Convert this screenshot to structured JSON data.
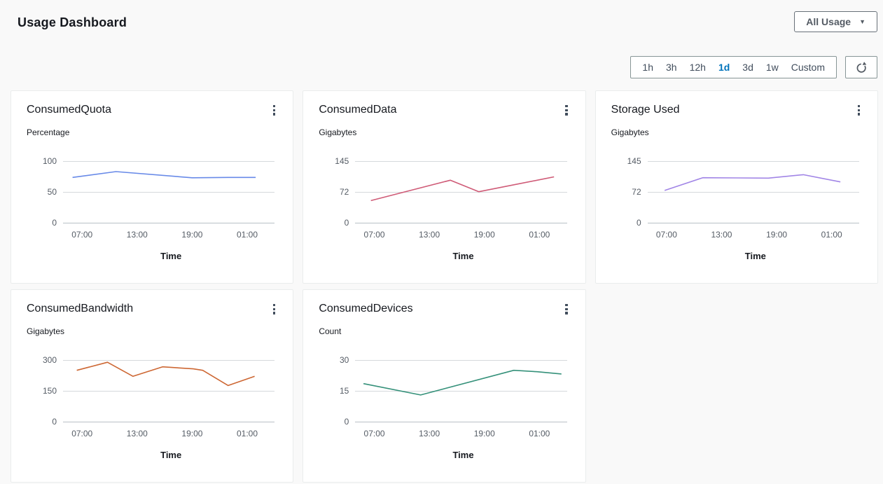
{
  "page": {
    "title": "Usage Dashboard",
    "background": "#f9f9f9"
  },
  "header": {
    "dashboard_select": {
      "label": "All Usage",
      "caret_icon": "▼"
    }
  },
  "toolbar": {
    "time_ranges": [
      {
        "label": "1h",
        "selected": false
      },
      {
        "label": "3h",
        "selected": false
      },
      {
        "label": "12h",
        "selected": false
      },
      {
        "label": "1d",
        "selected": true
      },
      {
        "label": "3d",
        "selected": false
      },
      {
        "label": "1w",
        "selected": false
      },
      {
        "label": "Custom",
        "selected": false
      }
    ],
    "selected_color": "#0073bb",
    "refresh_icon": "refresh-arrow-icon",
    "icon_color": "#545b64"
  },
  "chart_data": [
    {
      "type": "line",
      "title": "ConsumedQuota",
      "unit": "Percentage",
      "xlabel": "Time",
      "line_color": "#688ae8",
      "ylim": [
        0,
        100
      ],
      "yticks": [
        "100",
        "50",
        "0"
      ],
      "xticks": [
        {
          "label": "07:00",
          "pos": 0.09
        },
        {
          "label": "13:00",
          "pos": 0.35
        },
        {
          "label": "19:00",
          "pos": 0.61
        },
        {
          "label": "01:00",
          "pos": 0.87
        }
      ],
      "points": [
        {
          "x": 0.045,
          "y": 73.5
        },
        {
          "x": 0.25,
          "y": 83
        },
        {
          "x": 0.61,
          "y": 73
        },
        {
          "x": 0.78,
          "y": 73.5
        },
        {
          "x": 0.91,
          "y": 73.5
        }
      ],
      "legend": [],
      "grid": true
    },
    {
      "type": "line",
      "title": "ConsumedData",
      "unit": "Gigabytes",
      "xlabel": "Time",
      "line_color": "#cf5b77",
      "ylim": [
        0,
        145
      ],
      "yticks": [
        "145",
        "72",
        "0"
      ],
      "xticks": [
        {
          "label": "07:00",
          "pos": 0.09
        },
        {
          "label": "13:00",
          "pos": 0.35
        },
        {
          "label": "19:00",
          "pos": 0.61
        },
        {
          "label": "01:00",
          "pos": 0.87
        }
      ],
      "points": [
        {
          "x": 0.075,
          "y": 52
        },
        {
          "x": 0.45,
          "y": 100
        },
        {
          "x": 0.585,
          "y": 73
        },
        {
          "x": 0.94,
          "y": 108
        }
      ],
      "legend": [],
      "grid": true
    },
    {
      "type": "line",
      "title": "Storage Used",
      "unit": "Gigabytes",
      "xlabel": "Time",
      "line_color": "#a185e6",
      "ylim": [
        0,
        145
      ],
      "yticks": [
        "145",
        "72",
        "0"
      ],
      "xticks": [
        {
          "label": "07:00",
          "pos": 0.09
        },
        {
          "label": "13:00",
          "pos": 0.35
        },
        {
          "label": "19:00",
          "pos": 0.61
        },
        {
          "label": "01:00",
          "pos": 0.87
        }
      ],
      "points": [
        {
          "x": 0.08,
          "y": 76
        },
        {
          "x": 0.26,
          "y": 106
        },
        {
          "x": 0.42,
          "y": 105.5
        },
        {
          "x": 0.57,
          "y": 105
        },
        {
          "x": 0.735,
          "y": 113
        },
        {
          "x": 0.91,
          "y": 96
        }
      ],
      "legend": [],
      "grid": true
    },
    {
      "type": "line",
      "title": "ConsumedBandwidth",
      "unit": "Gigabytes",
      "xlabel": "Time",
      "line_color": "#cd6733",
      "ylim": [
        0,
        300
      ],
      "yticks": [
        "300",
        "150",
        "0"
      ],
      "xticks": [
        {
          "label": "07:00",
          "pos": 0.09
        },
        {
          "label": "13:00",
          "pos": 0.35
        },
        {
          "label": "19:00",
          "pos": 0.61
        },
        {
          "label": "01:00",
          "pos": 0.87
        }
      ],
      "points": [
        {
          "x": 0.065,
          "y": 250
        },
        {
          "x": 0.21,
          "y": 289
        },
        {
          "x": 0.33,
          "y": 221
        },
        {
          "x": 0.47,
          "y": 267
        },
        {
          "x": 0.615,
          "y": 257
        },
        {
          "x": 0.66,
          "y": 250
        },
        {
          "x": 0.78,
          "y": 176
        },
        {
          "x": 0.905,
          "y": 221
        }
      ],
      "legend": [],
      "grid": true
    },
    {
      "type": "line",
      "title": "ConsumedDevices",
      "unit": "Count",
      "xlabel": "Time",
      "line_color": "#35917a",
      "ylim": [
        0,
        30
      ],
      "yticks": [
        "30",
        "15",
        "0"
      ],
      "xticks": [
        {
          "label": "07:00",
          "pos": 0.09
        },
        {
          "label": "13:00",
          "pos": 0.35
        },
        {
          "label": "19:00",
          "pos": 0.61
        },
        {
          "label": "01:00",
          "pos": 0.87
        }
      ],
      "points": [
        {
          "x": 0.04,
          "y": 18.5
        },
        {
          "x": 0.31,
          "y": 13
        },
        {
          "x": 0.75,
          "y": 25
        },
        {
          "x": 0.86,
          "y": 24.3
        },
        {
          "x": 0.975,
          "y": 23.2
        }
      ],
      "legend": [],
      "grid": true
    }
  ]
}
